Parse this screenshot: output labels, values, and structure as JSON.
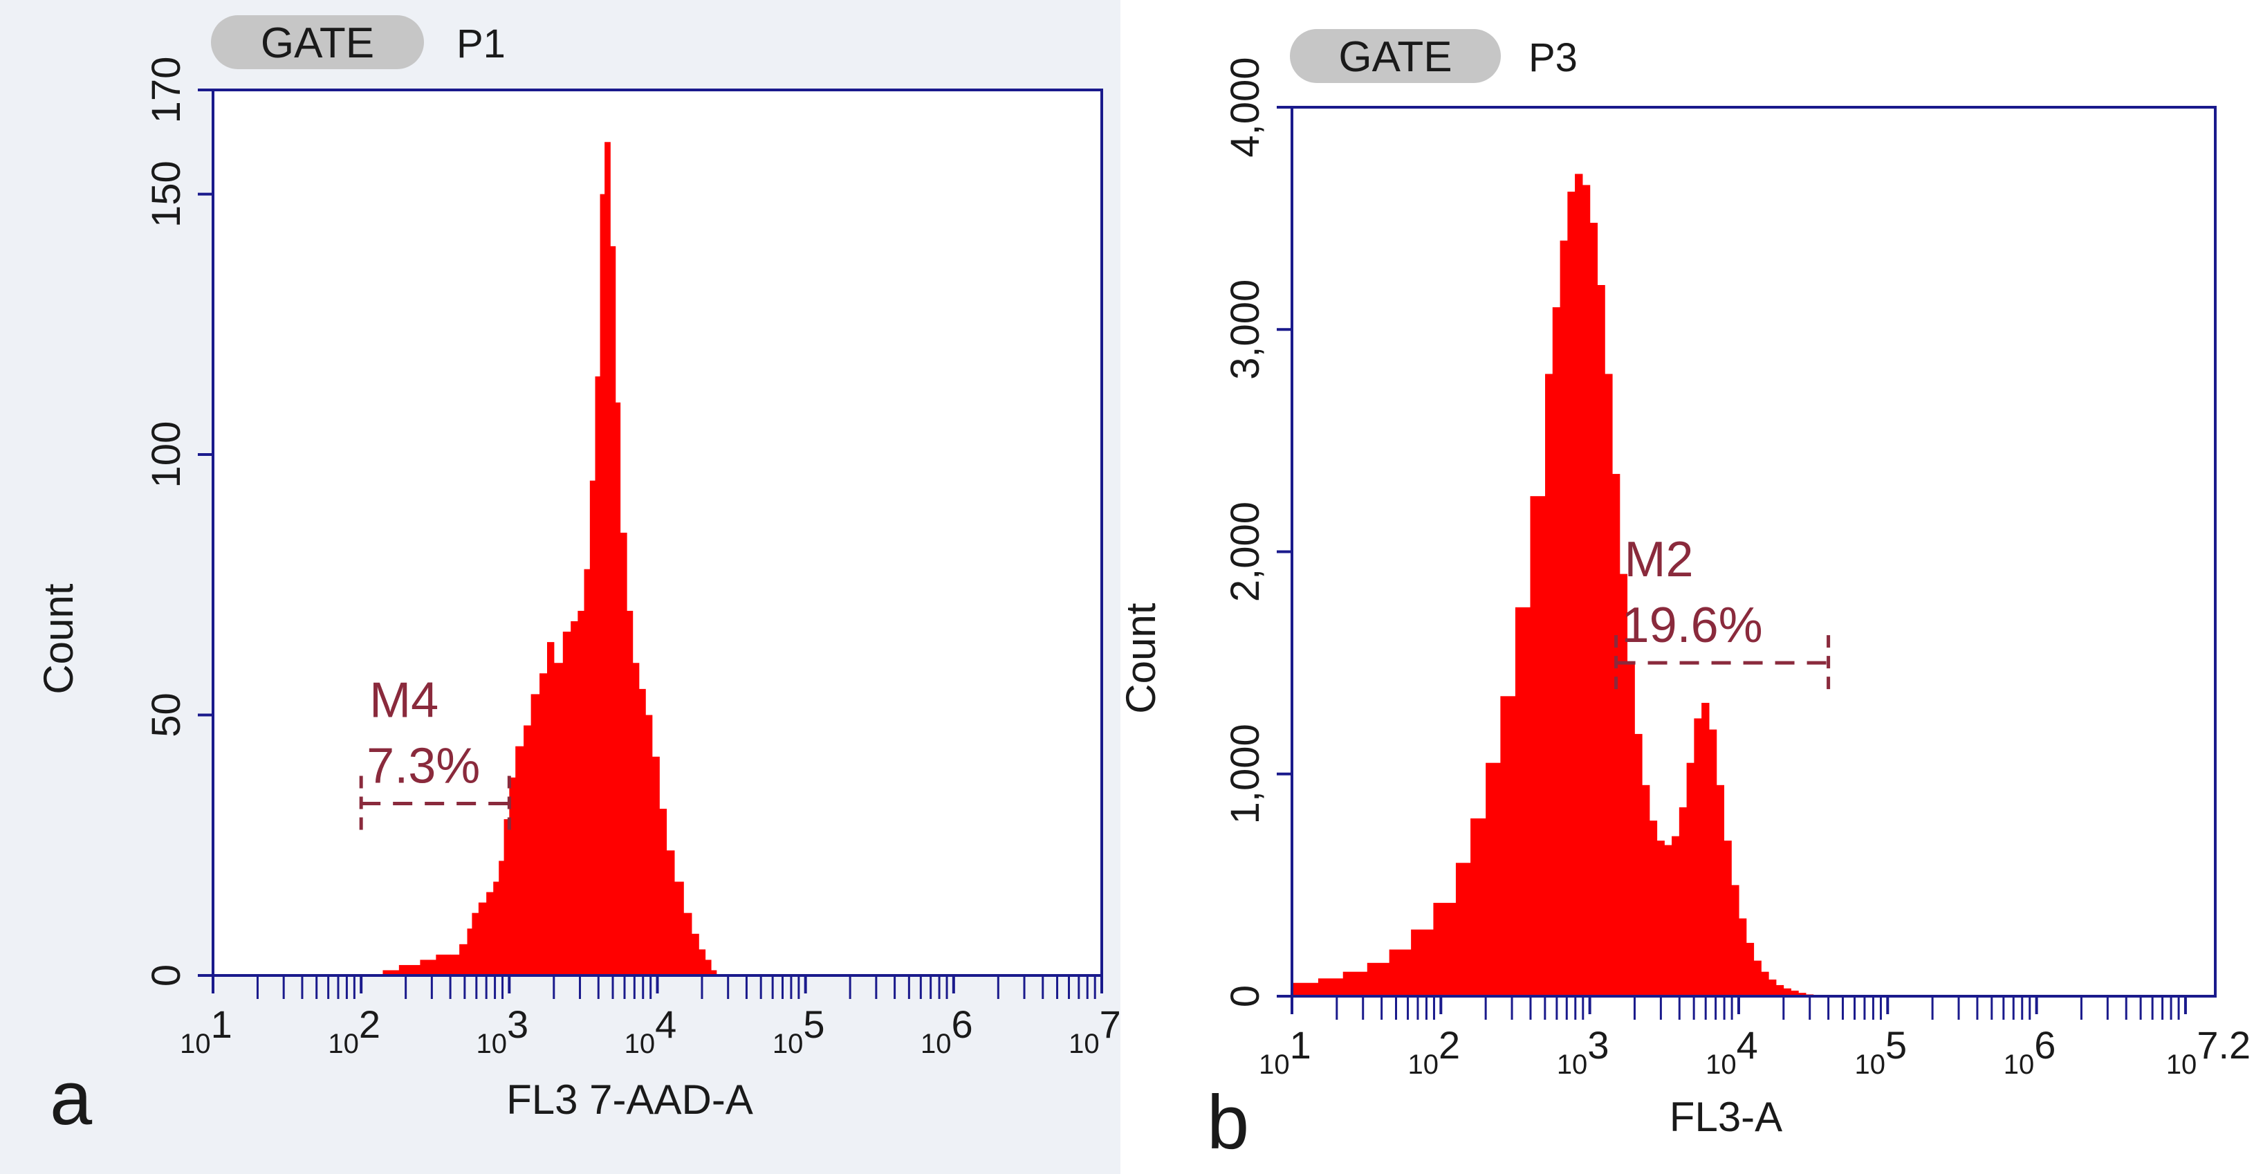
{
  "chart_data": [
    {
      "type": "histogram",
      "panel_label": "a",
      "gate_label": "GATE",
      "gate_value": "P1",
      "xlabel": "FL3 7-AAD-A",
      "ylabel": "Count",
      "x_scale": "log10",
      "xlim": [
        10,
        10000000
      ],
      "ylim": [
        0,
        170
      ],
      "x_ticks": [
        {
          "base": "10",
          "exp": "1"
        },
        {
          "base": "10",
          "exp": "2"
        },
        {
          "base": "10",
          "exp": "3"
        },
        {
          "base": "10",
          "exp": "4"
        },
        {
          "base": "10",
          "exp": "5"
        },
        {
          "base": "10",
          "exp": "6"
        },
        {
          "base": "10",
          "exp": "7"
        }
      ],
      "y_ticks": [
        {
          "value": 0,
          "label": "0"
        },
        {
          "value": 50,
          "label": "50"
        },
        {
          "value": 100,
          "label": "100"
        },
        {
          "value": 150,
          "label": "150"
        },
        {
          "value": 170,
          "label": "170"
        }
      ],
      "series_color": "#ff0000",
      "axis_color": "#1a1a8c",
      "marker": {
        "name": "M4",
        "percent": "7.3%",
        "x_range": [
          100,
          1000
        ],
        "level": 33
      },
      "histogram": {
        "x": [
          100,
          140,
          180,
          250,
          320,
          400,
          460,
          520,
          560,
          620,
          700,
          780,
          850,
          920,
          1000,
          1100,
          1250,
          1400,
          1600,
          1800,
          2000,
          2300,
          2600,
          2900,
          3200,
          3500,
          3800,
          4100,
          4400,
          4800,
          5200,
          5600,
          6200,
          6800,
          7500,
          8300,
          9200,
          10300,
          11500,
          13000,
          15000,
          17000,
          19000,
          21000,
          23000,
          25000,
          27000
        ],
        "y": [
          0,
          1,
          2,
          3,
          4,
          4,
          6,
          9,
          12,
          14,
          16,
          18,
          22,
          30,
          38,
          44,
          48,
          54,
          58,
          64,
          60,
          66,
          68,
          70,
          78,
          95,
          115,
          150,
          160,
          140,
          110,
          85,
          70,
          60,
          55,
          50,
          42,
          32,
          24,
          18,
          12,
          8,
          5,
          3,
          1,
          0,
          0
        ]
      }
    },
    {
      "type": "histogram",
      "panel_label": "b",
      "gate_label": "GATE",
      "gate_value": "P3",
      "xlabel": "FL3-A",
      "ylabel": "Count",
      "x_scale": "log10",
      "xlim": [
        10,
        15848932
      ],
      "ylim": [
        0,
        4000
      ],
      "x_ticks": [
        {
          "base": "10",
          "exp": "1"
        },
        {
          "base": "10",
          "exp": "2"
        },
        {
          "base": "10",
          "exp": "3"
        },
        {
          "base": "10",
          "exp": "4"
        },
        {
          "base": "10",
          "exp": "5"
        },
        {
          "base": "10",
          "exp": "6"
        },
        {
          "base": "10",
          "exp": "7.2"
        }
      ],
      "y_ticks": [
        {
          "value": 0,
          "label": "0"
        },
        {
          "value": 1000,
          "label": "1,000"
        },
        {
          "value": 2000,
          "label": "2,000"
        },
        {
          "value": 3000,
          "label": "3,000"
        },
        {
          "value": 4000,
          "label": "4,000"
        }
      ],
      "series_color": "#ff0000",
      "axis_color": "#1a1a8c",
      "marker": {
        "name": "M2",
        "percent": "19.6%",
        "x_range": [
          1500,
          40000
        ],
        "level": 1500
      },
      "histogram": {
        "x": [
          10,
          15,
          22,
          32,
          45,
          63,
          89,
          126,
          158,
          200,
          251,
          316,
          398,
          501,
          562,
          631,
          708,
          794,
          891,
          1000,
          1122,
          1259,
          1413,
          1585,
          1778,
          1995,
          2239,
          2512,
          2818,
          3162,
          3548,
          3981,
          4467,
          5012,
          5623,
          6310,
          7079,
          7943,
          8913,
          10000,
          11220,
          12589,
          14125,
          15849,
          17783,
          19953,
          22387,
          25119,
          28184,
          31623,
          35481,
          39811,
          44668,
          50119,
          56234,
          63096
        ],
        "y": [
          60,
          80,
          110,
          150,
          210,
          300,
          420,
          600,
          800,
          1050,
          1350,
          1750,
          2250,
          2800,
          3100,
          3400,
          3620,
          3700,
          3650,
          3480,
          3200,
          2800,
          2350,
          1900,
          1500,
          1180,
          950,
          790,
          700,
          680,
          720,
          850,
          1050,
          1250,
          1320,
          1200,
          950,
          700,
          500,
          350,
          240,
          160,
          110,
          75,
          50,
          35,
          25,
          15,
          8,
          5,
          3,
          2,
          1,
          1,
          0,
          0
        ]
      }
    }
  ]
}
